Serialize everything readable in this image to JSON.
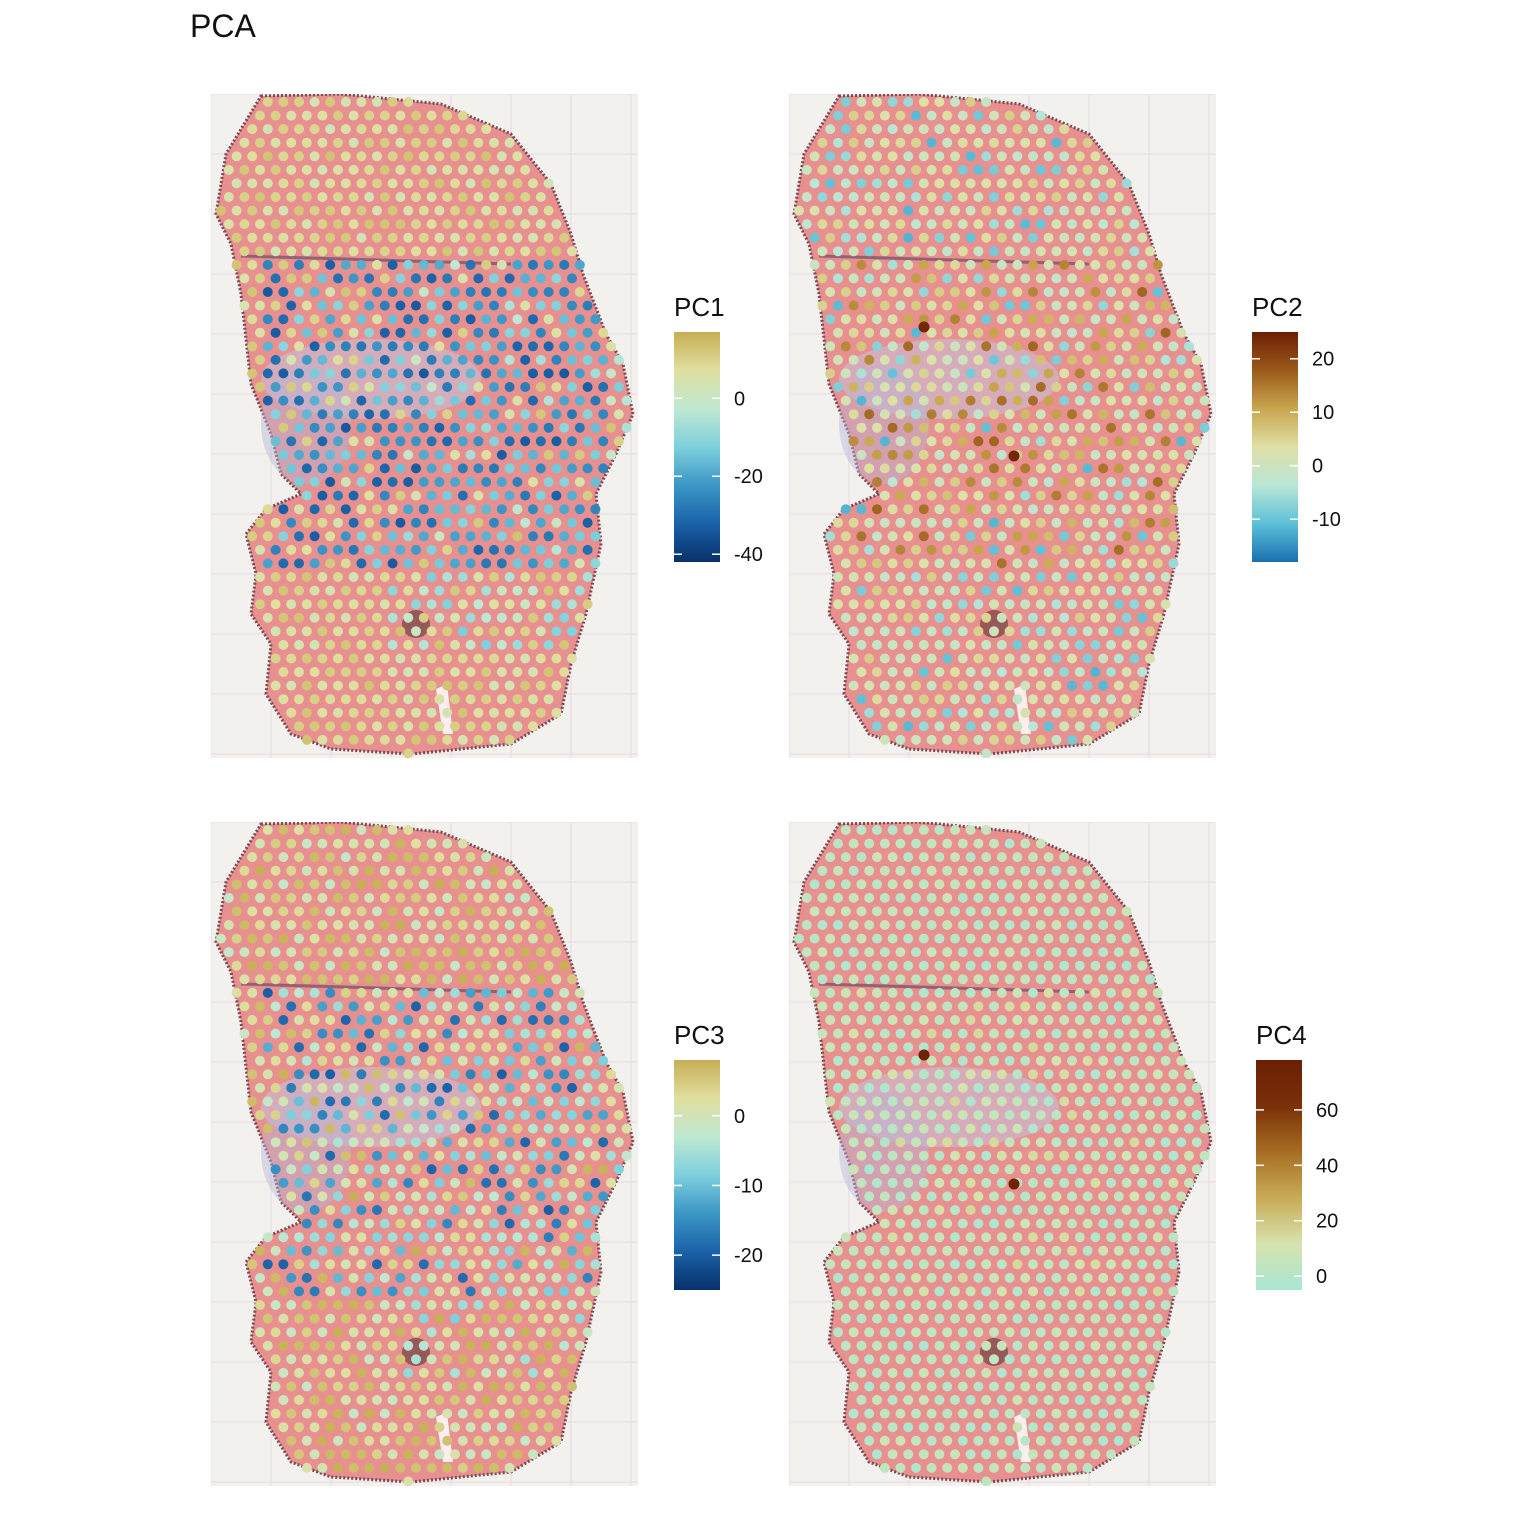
{
  "title": "PCA",
  "chart_data": [
    {
      "type": "scatter",
      "name": "PC1",
      "legend_title": "PC1",
      "colorbar_range": [
        -42,
        17
      ],
      "colorbar_ticks": [
        {
          "value": 0,
          "label": "0"
        },
        {
          "value": -20,
          "label": "-20"
        },
        {
          "value": -40,
          "label": "-40"
        }
      ],
      "palette": [
        "#08306b",
        "#1b62a8",
        "#3b96c6",
        "#7fd0dc",
        "#bfe8d2",
        "#e0dfa0",
        "#c8ae55"
      ],
      "spot_distribution": {
        "background_value": 8,
        "deep_region_value": -22,
        "mid_region_value": -6
      },
      "background_image": "spatial tissue section"
    },
    {
      "type": "scatter",
      "name": "PC2",
      "legend_title": "PC2",
      "colorbar_range": [
        -18,
        25
      ],
      "colorbar_ticks": [
        {
          "value": 20,
          "label": "20"
        },
        {
          "value": 10,
          "label": "10"
        },
        {
          "value": 0,
          "label": "0"
        },
        {
          "value": -10,
          "label": "-10"
        }
      ],
      "palette": [
        "#1a6fb0",
        "#5cc0d8",
        "#b9e6d6",
        "#dfe0a6",
        "#c9a64e",
        "#9a5a1a",
        "#6b1f05"
      ],
      "spot_distribution": {
        "background_value": 2,
        "deep_region_value": -6,
        "mid_region_value": 8
      },
      "background_image": "spatial tissue section"
    },
    {
      "type": "scatter",
      "name": "PC3",
      "legend_title": "PC3",
      "colorbar_range": [
        -25,
        8
      ],
      "colorbar_ticks": [
        {
          "value": 0,
          "label": "0"
        },
        {
          "value": -10,
          "label": "-10"
        },
        {
          "value": -20,
          "label": "-20"
        }
      ],
      "palette": [
        "#08306b",
        "#1b62a8",
        "#3b96c6",
        "#7fd0dc",
        "#bfe8d2",
        "#e0dfa0",
        "#c8ae55"
      ],
      "spot_distribution": {
        "background_value": 3,
        "deep_region_value": -8,
        "mid_region_value": -2
      },
      "background_image": "spatial tissue section"
    },
    {
      "type": "scatter",
      "name": "PC4",
      "legend_title": "PC4",
      "colorbar_range": [
        -5,
        78
      ],
      "colorbar_ticks": [
        {
          "value": 60,
          "label": "60"
        },
        {
          "value": 40,
          "label": "40"
        },
        {
          "value": 20,
          "label": "20"
        },
        {
          "value": 0,
          "label": "0"
        }
      ],
      "palette": [
        "#a9e6d2",
        "#d7e3ae",
        "#c9ab57",
        "#a76d22",
        "#7a3008",
        "#6b1f05"
      ],
      "spot_distribution": {
        "background_value": 4,
        "deep_region_value": 2,
        "mid_region_value": 6
      },
      "background_image": "spatial tissue section"
    }
  ]
}
